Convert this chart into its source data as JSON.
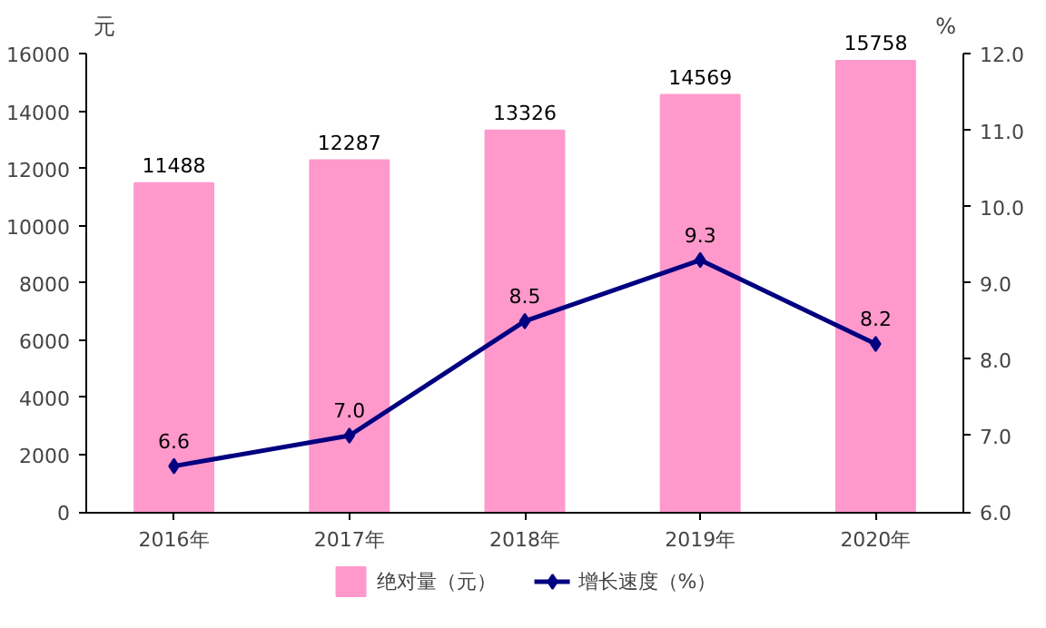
{
  "chart_data": {
    "type": "bar",
    "categories": [
      "2016年",
      "2017年",
      "2018年",
      "2019年",
      "2020年"
    ],
    "ylabel": "元",
    "y2label": "%",
    "series": [
      {
        "name": "绝对量（元）",
        "color": "#ff99cc",
        "values": [
          11488,
          12287,
          13326,
          14569,
          15758
        ],
        "value_labels": [
          "11488",
          "12287",
          "13326",
          "14569",
          "15758"
        ]
      },
      {
        "name": "增长速度（%）",
        "type": "line",
        "axis": "y2",
        "color": "#000080",
        "marker": "diamond",
        "values": [
          6.6,
          7.0,
          8.5,
          9.3,
          8.2
        ],
        "value_labels": [
          "6.6",
          "7.0",
          "8.5",
          "9.3",
          "8.2"
        ]
      }
    ],
    "ylim": [
      0,
      16000
    ],
    "yticks": [
      0,
      2000,
      4000,
      6000,
      8000,
      10000,
      12000,
      14000,
      16000
    ],
    "y2lim": [
      6,
      12
    ],
    "y2ticks": [
      {
        "value": 6,
        "label": "6.0"
      },
      {
        "value": 7,
        "label": "7.0"
      },
      {
        "value": 8,
        "label": "8.0"
      },
      {
        "value": 9,
        "label": "9.0"
      },
      {
        "value": 10,
        "label": "10.0"
      },
      {
        "value": 11,
        "label": "11.0"
      },
      {
        "value": 12,
        "label": "12.0"
      }
    ],
    "grid": false,
    "legend": "bottom"
  }
}
